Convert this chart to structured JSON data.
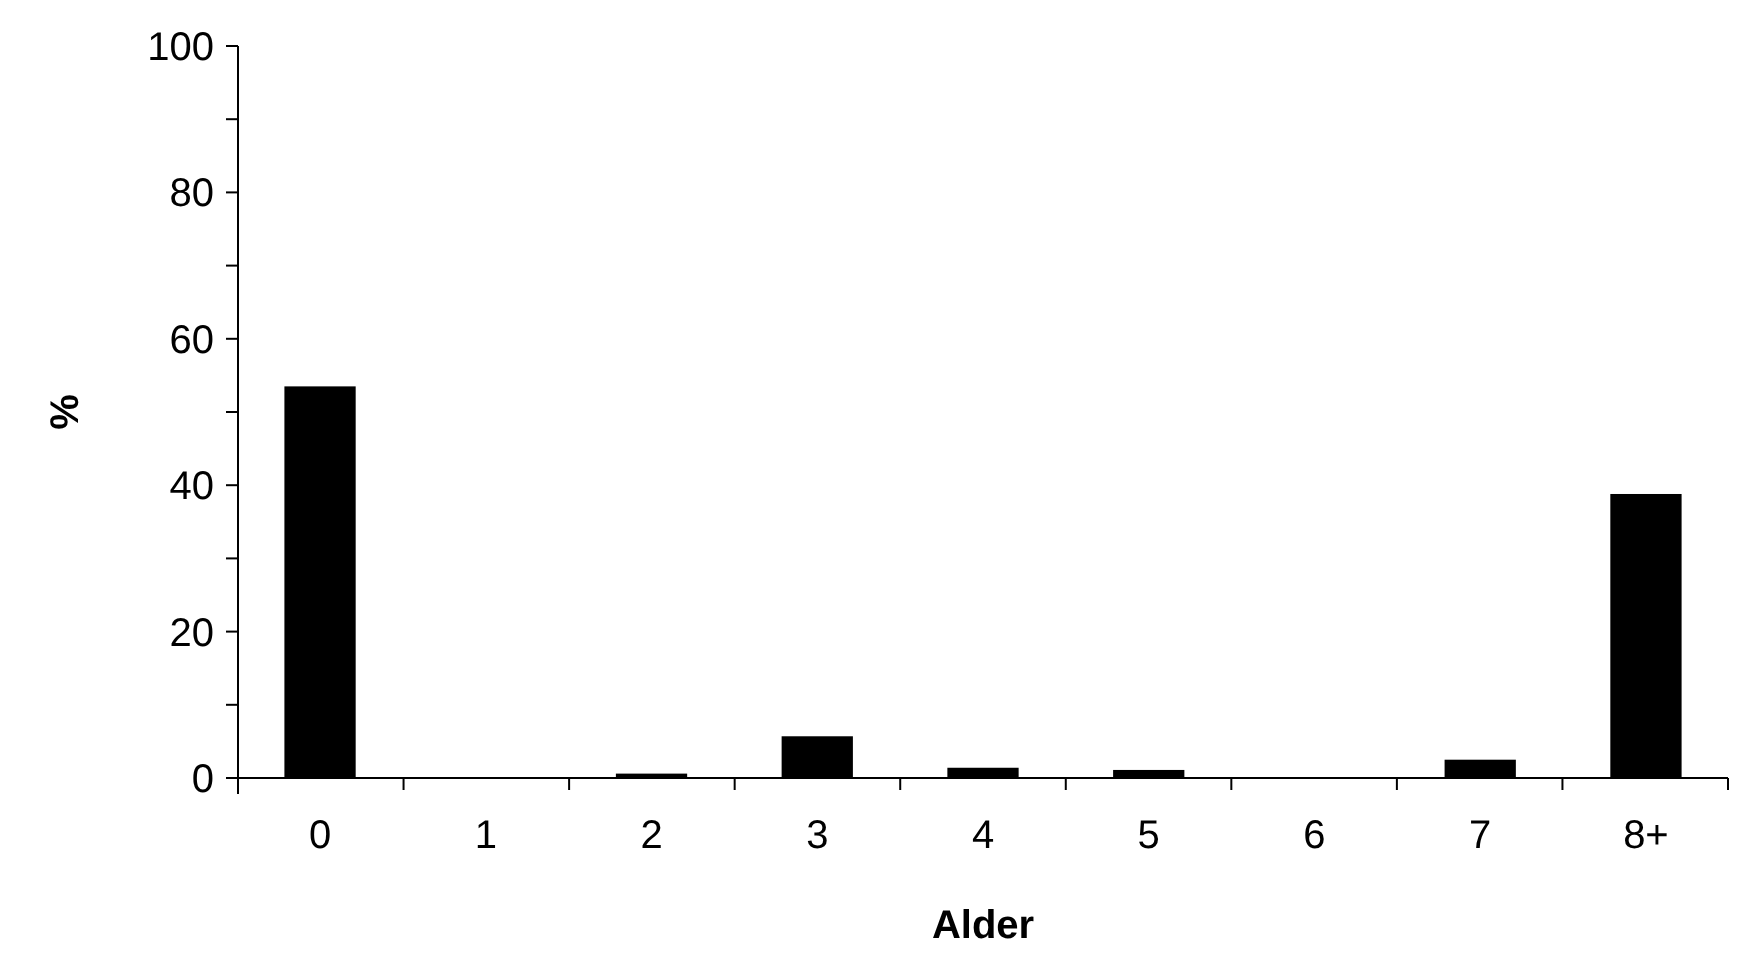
{
  "chart_data": {
    "type": "bar",
    "xlabel": "Alder",
    "ylabel": "%",
    "categories": [
      "0",
      "1",
      "2",
      "3",
      "4",
      "5",
      "6",
      "7",
      "8+"
    ],
    "values": [
      53.5,
      0,
      0.6,
      5.7,
      1.4,
      1.1,
      0,
      2.5,
      38.8
    ],
    "color": "#000000",
    "ylim": [
      0,
      100
    ],
    "yticks": [
      0,
      {
        "value": 10,
        "label": null
      },
      20,
      {
        "value": 30,
        "label": null
      },
      40,
      {
        "value": 50,
        "label": null
      },
      60,
      {
        "value": 70,
        "label": null
      },
      80,
      {
        "value": 90,
        "label": null
      },
      100
    ],
    "grid": false
  }
}
